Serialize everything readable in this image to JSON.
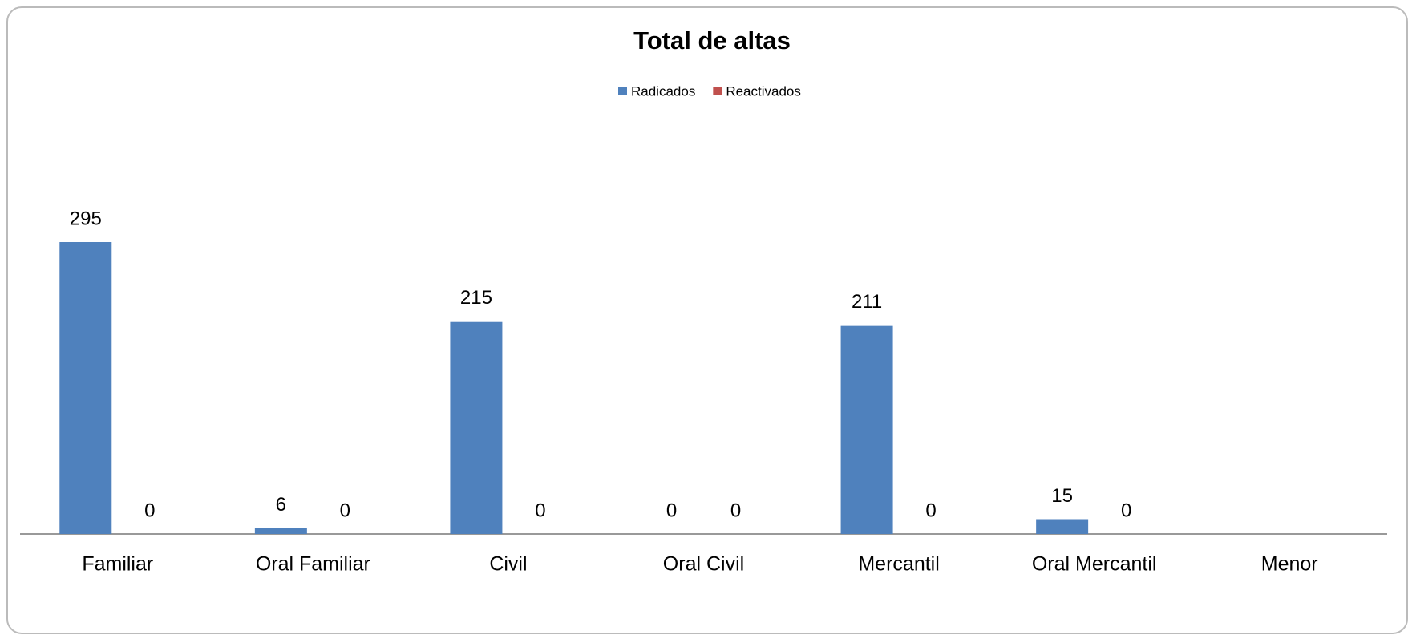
{
  "chart_data": {
    "type": "bar",
    "title": "Total de altas",
    "categories": [
      "Familiar",
      "Oral Familiar",
      "Civil",
      "Oral Civil",
      "Mercantil",
      "Oral Mercantil",
      "Menor"
    ],
    "series": [
      {
        "name": "Radicados",
        "color": "#4f81bd",
        "values": [
          295,
          6,
          215,
          0,
          211,
          15,
          null
        ]
      },
      {
        "name": "Reactivados",
        "color": "#c0504d",
        "values": [
          0,
          0,
          0,
          0,
          0,
          0,
          null
        ]
      }
    ],
    "legend": "top"
  }
}
